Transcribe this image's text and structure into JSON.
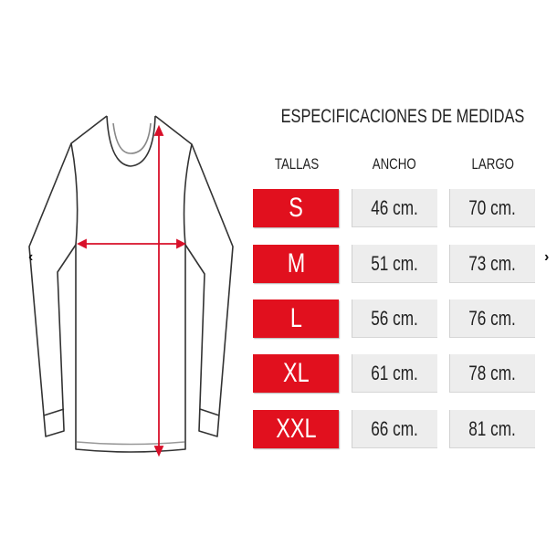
{
  "title": "ESPECIFICACIONES DE MEDIDAS",
  "headers": {
    "size": "TALLAS",
    "width": "ANCHO",
    "length": "LARGO"
  },
  "rows": [
    {
      "size": "S",
      "width": "46 cm.",
      "length": "70 cm."
    },
    {
      "size": "M",
      "width": "51 cm.",
      "length": "73 cm."
    },
    {
      "size": "L",
      "width": "56 cm.",
      "length": "76 cm."
    },
    {
      "size": "XL",
      "width": "61 cm.",
      "length": "78 cm."
    },
    {
      "size": "XXL",
      "width": "66 cm.",
      "length": "81 cm."
    }
  ],
  "carousel": {
    "prev_icon": "chevron-left-icon",
    "next_icon": "chevron-right-icon",
    "prev": "‹",
    "next": "›"
  },
  "colors": {
    "size_cell": "#e1101e",
    "value_cell": "#ededed",
    "measure_line": "#d8102a"
  }
}
